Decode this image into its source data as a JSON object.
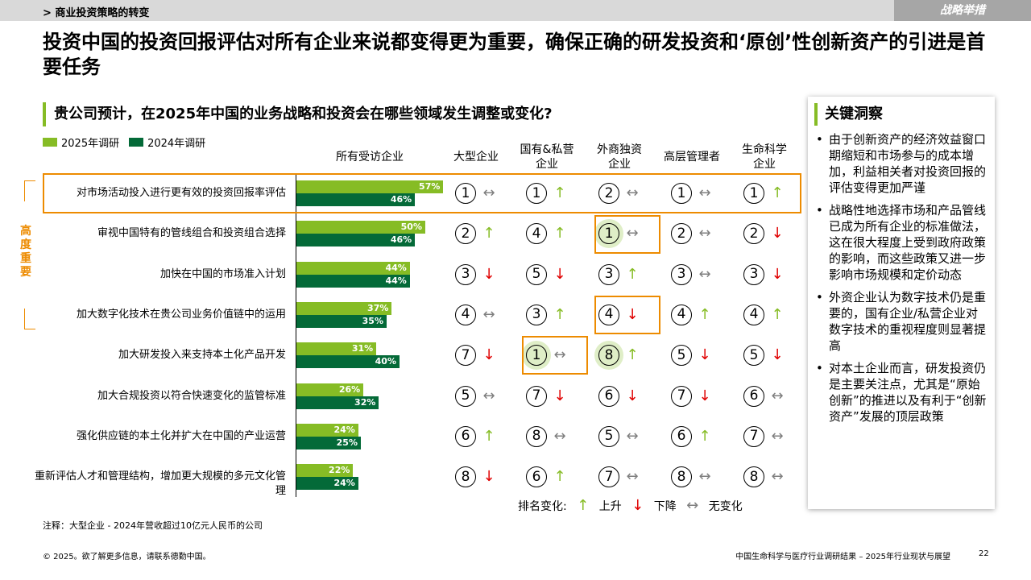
{
  "header": {
    "breadcrumb": "> 商业投资策略的转变",
    "section_tag": "战略举措"
  },
  "headline": "投资中国的投资回报评估对所有企业来说都变得更为重要，确保正确的研发投资和‘原创’性创新资产的引进是首要任务",
  "question": "贵公司预计，在2025年中国的业务战略和投资会在哪些领域发生调整或变化?",
  "colors": {
    "y2025": "#86bc25",
    "y2024": "#046a38",
    "accent_orange": "#ed8b00",
    "up": "#86bc25",
    "down": "#e00000",
    "same": "#7f7f7f"
  },
  "focus_label": "高度重要",
  "chart_data": {
    "type": "bar",
    "orientation": "horizontal",
    "categories": [
      "对市场活动投入进行更有效的投资回报率评估",
      "审视中国特有的管线组合和投资组合选择",
      "加快在中国的市场准入计划",
      "加大数字化技术在贵公司业务价值链中的运用",
      "加大研发投入来支持本土化产品开发",
      "加大合规投资以符合快速变化的监管标准",
      "强化供应链的本土化并扩大在中国的产业运营",
      "重新评估人才和管理结构，增加更大规模的多元文化管理"
    ],
    "series": [
      {
        "name": "2025年调研",
        "values": [
          57,
          50,
          44,
          37,
          31,
          26,
          24,
          22
        ]
      },
      {
        "name": "2024年调研",
        "values": [
          46,
          46,
          44,
          35,
          40,
          32,
          25,
          24
        ]
      }
    ],
    "value_suffix": "%",
    "xlim": [
      0,
      100
    ],
    "legend": "top-left"
  },
  "bar_column_header": "所有受访企业",
  "rank_columns": [
    "大型企业",
    "国有&私营\n企业",
    "外商独资\n企业",
    "高层管理者",
    "生命科学\n企业"
  ],
  "ranks": [
    [
      {
        "r": "①",
        "c": "same"
      },
      {
        "r": "①",
        "c": "up"
      },
      {
        "r": "②",
        "c": "same"
      },
      {
        "r": "①",
        "c": "same"
      },
      {
        "r": "①",
        "c": "up"
      }
    ],
    [
      {
        "r": "②",
        "c": "up"
      },
      {
        "r": "④",
        "c": "up"
      },
      {
        "r": "①",
        "c": "same",
        "hl": true
      },
      {
        "r": "②",
        "c": "same"
      },
      {
        "r": "②",
        "c": "down"
      }
    ],
    [
      {
        "r": "③",
        "c": "down"
      },
      {
        "r": "⑤",
        "c": "down"
      },
      {
        "r": "③",
        "c": "up"
      },
      {
        "r": "③",
        "c": "same"
      },
      {
        "r": "③",
        "c": "down"
      }
    ],
    [
      {
        "r": "④",
        "c": "same"
      },
      {
        "r": "③",
        "c": "up"
      },
      {
        "r": "④",
        "c": "down"
      },
      {
        "r": "④",
        "c": "up"
      },
      {
        "r": "④",
        "c": "up"
      }
    ],
    [
      {
        "r": "⑦",
        "c": "down"
      },
      {
        "r": "①",
        "c": "same",
        "hl": true
      },
      {
        "r": "⑧",
        "c": "up",
        "hl": true
      },
      {
        "r": "⑤",
        "c": "down"
      },
      {
        "r": "⑤",
        "c": "down"
      }
    ],
    [
      {
        "r": "⑤",
        "c": "same"
      },
      {
        "r": "⑦",
        "c": "down"
      },
      {
        "r": "⑥",
        "c": "down"
      },
      {
        "r": "⑦",
        "c": "down"
      },
      {
        "r": "⑥",
        "c": "same"
      }
    ],
    [
      {
        "r": "⑥",
        "c": "up"
      },
      {
        "r": "⑧",
        "c": "same"
      },
      {
        "r": "⑤",
        "c": "same"
      },
      {
        "r": "⑥",
        "c": "up"
      },
      {
        "r": "⑦",
        "c": "same"
      }
    ],
    [
      {
        "r": "⑧",
        "c": "down"
      },
      {
        "r": "⑥",
        "c": "up"
      },
      {
        "r": "⑦",
        "c": "same"
      },
      {
        "r": "⑧",
        "c": "same"
      },
      {
        "r": "⑧",
        "c": "same"
      }
    ]
  ],
  "change_legend": {
    "label": "排名变化:",
    "up": "上升",
    "down": "下降",
    "same": "无变化"
  },
  "insight": {
    "title": "关键洞察",
    "bullets": [
      "由于创新资产的经济效益窗口期缩短和市场参与的成本增加，利益相关者对投资回报的评估变得更加严谨",
      "战略性地选择市场和产品管线已成为所有企业的标准做法，这在很大程度上受到政府政策的影响，而这些政策又进一步影响市场规模和定价动态",
      "外资企业认为数字技术仍是重要的，国有企业/私营企业对数字技术的重视程度则显著提高",
      "对本土企业而言，研发投资仍是主要关注点，尤其是“原始创新”的推进以及有利于“创新资产”发展的顶层政策"
    ]
  },
  "note": "注释：大型企业 - 2024年营收超过10亿元人民币的公司",
  "footer": {
    "copyright": "© 2025。欲了解更多信息，请联系德勤中国。",
    "report": "中国生命科学与医疗行业调研结果 – 2025年行业现状与展望",
    "page": "22"
  }
}
